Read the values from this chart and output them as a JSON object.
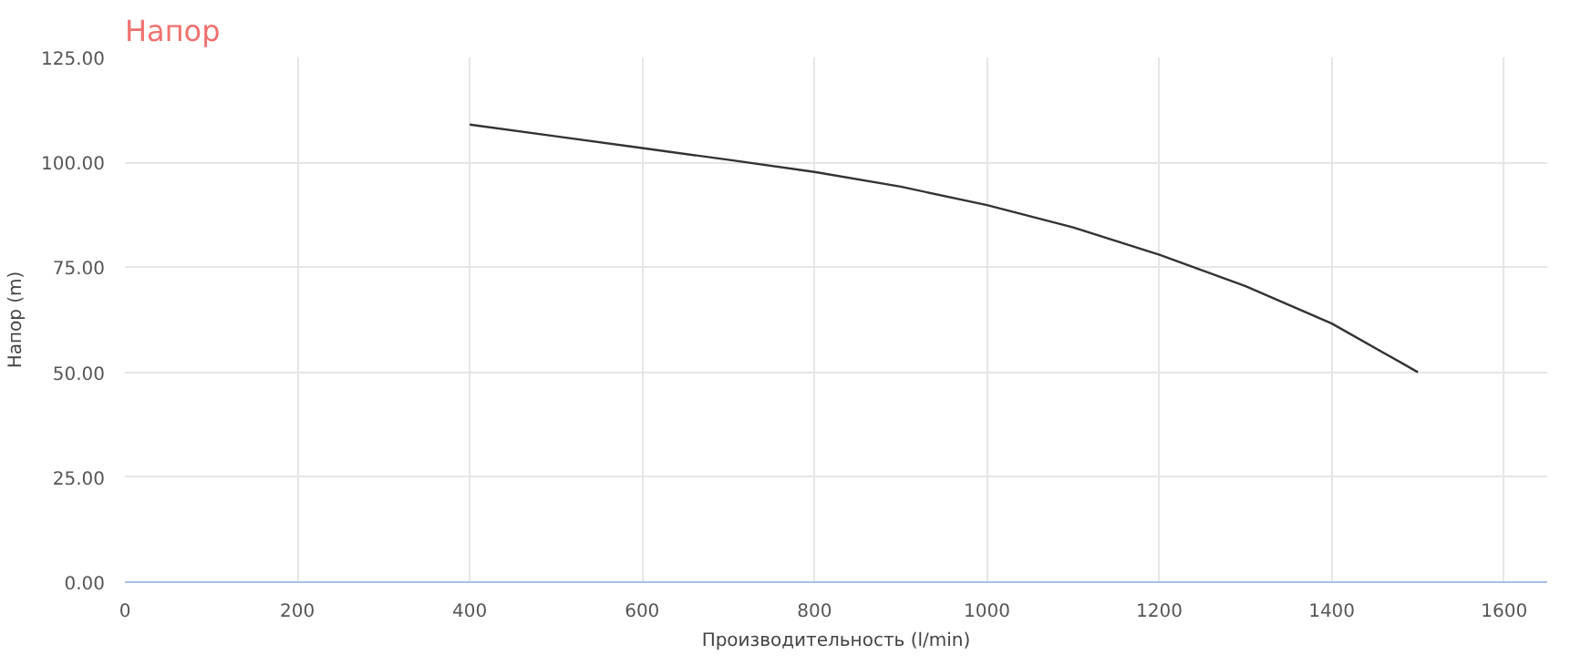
{
  "chart_data": {
    "type": "line",
    "title": "Напор",
    "xlabel": "Производительность (l/min)",
    "ylabel": "Напор (m)",
    "x": [
      400,
      500,
      600,
      700,
      800,
      900,
      1000,
      1100,
      1200,
      1300,
      1400,
      1500
    ],
    "series": [
      {
        "color": "#333333",
        "values": [
          109,
          106.2,
          103.4,
          100.6,
          97.7,
          94.2,
          89.8,
          84.5,
          78,
          70.5,
          61.6,
          50
        ]
      }
    ],
    "xlim": [
      0,
      1650
    ],
    "ylim": [
      0,
      125
    ],
    "xticks": [
      0,
      200,
      400,
      600,
      800,
      1000,
      1200,
      1400,
      1600
    ],
    "yticks": [
      {
        "value": 0,
        "label": "0.00"
      },
      {
        "value": 25,
        "label": "25.00"
      },
      {
        "value": 50,
        "label": "50.00"
      },
      {
        "value": 75,
        "label": "75.00"
      },
      {
        "value": 100,
        "label": "100.00"
      },
      {
        "value": 125,
        "label": "125.00"
      }
    ],
    "grid": true,
    "marker": "none",
    "line_style": "solid"
  }
}
